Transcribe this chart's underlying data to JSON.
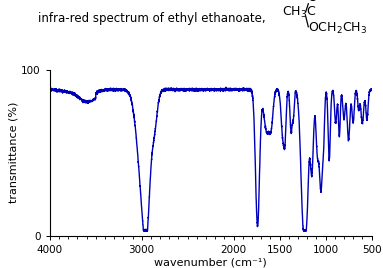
{
  "title_text": "infra-red spectrum of ethyl ethanoate,",
  "xlabel": "wavenumber (cm⁻¹)",
  "ylabel": "transmittance (%)",
  "xlim": [
    4000,
    500
  ],
  "ylim": [
    0,
    100
  ],
  "xticks": [
    4000,
    3000,
    2000,
    1500,
    1000,
    500
  ],
  "yticks": [
    0,
    100
  ],
  "line_color": "#0000bb",
  "line_width": 1.0,
  "background_color": "#ffffff",
  "title_fontsize": 8.5,
  "axis_fontsize": 8.0
}
